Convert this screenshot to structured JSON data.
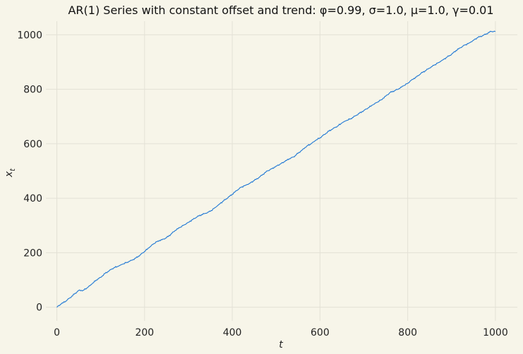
{
  "chart_data": {
    "type": "line",
    "title": "AR(1) Series with constant offset and trend: φ=0.99, σ=1.0, μ=1.0, γ=0.01",
    "xlabel": "t",
    "ylabel_base": "x",
    "ylabel_sub": "t",
    "xlim": [
      -25,
      1050
    ],
    "ylim": [
      -50,
      1050
    ],
    "xticks": [
      0,
      200,
      400,
      600,
      800,
      1000
    ],
    "yticks": [
      0,
      200,
      400,
      600,
      800,
      1000
    ],
    "grid": true,
    "series": [
      {
        "color": "#1f77d4",
        "x": [
          0,
          10,
          20,
          30,
          40,
          50,
          60,
          70,
          80,
          90,
          100,
          110,
          120,
          130,
          140,
          150,
          160,
          170,
          180,
          190,
          200,
          210,
          220,
          230,
          240,
          250,
          260,
          270,
          280,
          290,
          300,
          310,
          320,
          330,
          340,
          350,
          360,
          370,
          380,
          390,
          400,
          410,
          420,
          430,
          440,
          450,
          460,
          470,
          480,
          490,
          500,
          510,
          520,
          530,
          540,
          550,
          560,
          570,
          580,
          590,
          600,
          610,
          620,
          630,
          640,
          650,
          660,
          670,
          680,
          690,
          700,
          710,
          720,
          730,
          740,
          750,
          760,
          770,
          780,
          790,
          800,
          810,
          820,
          830,
          840,
          850,
          860,
          870,
          880,
          890,
          900,
          910,
          920,
          930,
          940,
          950,
          960,
          970,
          980,
          990,
          1000
        ],
        "values": [
          0,
          12,
          22,
          35,
          48,
          62,
          62,
          72,
          85,
          100,
          110,
          124,
          135,
          145,
          150,
          158,
          165,
          172,
          180,
          192,
          205,
          218,
          232,
          243,
          248,
          255,
          268,
          282,
          292,
          302,
          312,
          322,
          332,
          340,
          345,
          352,
          365,
          378,
          390,
          402,
          415,
          428,
          440,
          448,
          455,
          465,
          475,
          488,
          500,
          508,
          518,
          526,
          535,
          545,
          552,
          565,
          578,
          592,
          600,
          612,
          622,
          634,
          646,
          656,
          665,
          676,
          685,
          692,
          702,
          712,
          722,
          732,
          742,
          752,
          762,
          775,
          788,
          795,
          802,
          812,
          822,
          836,
          845,
          858,
          868,
          878,
          888,
          898,
          908,
          918,
          928,
          942,
          952,
          962,
          970,
          980,
          990,
          996,
          1004,
          1012,
          1012
        ]
      }
    ]
  }
}
